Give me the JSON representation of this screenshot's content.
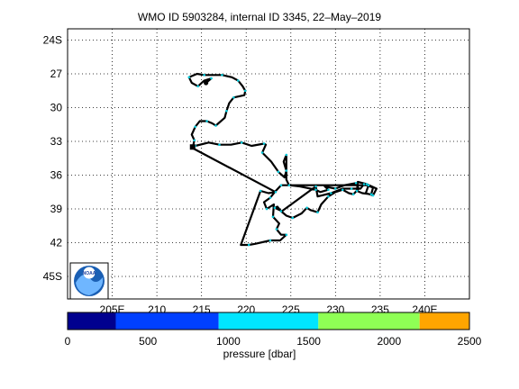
{
  "title": "WMO ID 5903284, internal ID 3345, 22–May–2019",
  "map": {
    "lat_ticks": [
      "24S",
      "27",
      "30",
      "33",
      "36",
      "39",
      "42",
      "45S"
    ],
    "lon_ticks": [
      "205E",
      "210",
      "215",
      "220",
      "225",
      "230",
      "235",
      "240E"
    ],
    "lon_range": [
      200,
      245
    ],
    "lat_range": [
      -47,
      -23
    ],
    "grid": true
  },
  "logo": {
    "text": "NOAA"
  },
  "colorbar": {
    "label": "pressure [dbar]",
    "ticks": [
      "0",
      "500",
      "1000",
      "1500",
      "2000",
      "2500"
    ],
    "range": [
      0,
      2500
    ],
    "bins": [
      {
        "from": 0,
        "to": 300,
        "color": "#00008f"
      },
      {
        "from": 300,
        "to": 940,
        "color": "#0040ff"
      },
      {
        "from": 940,
        "to": 1560,
        "color": "#00e5ff"
      },
      {
        "from": 1560,
        "to": 2190,
        "color": "#8fff55"
      },
      {
        "from": 2190,
        "to": 2500,
        "color": "#ffa500"
      }
    ]
  },
  "track_colors": {
    "line": "#000000",
    "profile_dot": "#00ccdd",
    "end_marker": "#000000"
  },
  "track": [
    [
      214.0,
      -33.5
    ],
    [
      214.3,
      -33.4
    ],
    [
      215.8,
      -33.1
    ],
    [
      217.0,
      -33.3
    ],
    [
      218.3,
      -33.3
    ],
    [
      219.5,
      -33.1
    ],
    [
      220.6,
      -33.4
    ],
    [
      222.0,
      -33.2
    ],
    [
      222.2,
      -33.3
    ],
    [
      221.8,
      -34.0
    ],
    [
      222.8,
      -34.8
    ],
    [
      223.6,
      -35.7
    ],
    [
      224.3,
      -36.2
    ],
    [
      224.5,
      -35.6
    ],
    [
      224.2,
      -34.8
    ],
    [
      224.5,
      -34.2
    ],
    [
      224.5,
      -36.4
    ],
    [
      224.8,
      -36.9
    ],
    [
      226.0,
      -37.0
    ],
    [
      227.8,
      -37.3
    ],
    [
      228.3,
      -37.5
    ],
    [
      229.2,
      -37.3
    ],
    [
      228.8,
      -37.0
    ],
    [
      230.0,
      -37.2
    ],
    [
      231.0,
      -36.9
    ],
    [
      232.3,
      -36.7
    ],
    [
      232.6,
      -37.2
    ],
    [
      232.0,
      -37.7
    ],
    [
      231.5,
      -37.6
    ],
    [
      230.8,
      -37.3
    ],
    [
      230.0,
      -37.5
    ],
    [
      229.2,
      -37.9
    ],
    [
      228.4,
      -38.6
    ],
    [
      228.0,
      -39.3
    ],
    [
      227.2,
      -39.1
    ],
    [
      226.8,
      -38.9
    ],
    [
      226.2,
      -39.4
    ],
    [
      225.2,
      -39.8
    ],
    [
      224.5,
      -39.6
    ],
    [
      223.9,
      -39.2
    ],
    [
      223.5,
      -38.8
    ],
    [
      223.2,
      -38.9
    ],
    [
      224.0,
      -39.2
    ],
    [
      227.8,
      -37.0
    ],
    [
      228.0,
      -37.9
    ],
    [
      229.5,
      -37.6
    ],
    [
      230.8,
      -37.2
    ],
    [
      231.8,
      -37.2
    ],
    [
      232.8,
      -37.2
    ],
    [
      233.2,
      -36.8
    ],
    [
      234.2,
      -37.1
    ],
    [
      234.0,
      -37.7
    ],
    [
      233.0,
      -37.6
    ],
    [
      232.4,
      -37.4
    ],
    [
      232.5,
      -36.6
    ],
    [
      233.5,
      -36.8
    ],
    [
      234.6,
      -37.2
    ],
    [
      234.2,
      -37.8
    ],
    [
      233.4,
      -37.6
    ],
    [
      233.7,
      -36.9
    ],
    [
      224.9,
      -36.9
    ],
    [
      223.9,
      -36.9
    ],
    [
      223.2,
      -37.5
    ],
    [
      222.7,
      -38.0
    ],
    [
      222.0,
      -38.4
    ],
    [
      222.3,
      -39.0
    ],
    [
      223.1,
      -38.6
    ],
    [
      223.0,
      -39.7
    ],
    [
      223.7,
      -40.3
    ],
    [
      223.4,
      -40.8
    ],
    [
      223.9,
      -41.3
    ],
    [
      224.5,
      -41.3
    ],
    [
      223.8,
      -41.8
    ],
    [
      222.7,
      -41.8
    ],
    [
      221.0,
      -42.1
    ],
    [
      220.3,
      -42.2
    ],
    [
      219.4,
      -42.2
    ],
    [
      221.6,
      -37.4
    ],
    [
      222.5,
      -37.6
    ],
    [
      223.3,
      -37.5
    ],
    [
      214.0,
      -33.6
    ],
    [
      214.2,
      -32.9
    ],
    [
      213.9,
      -32.4
    ],
    [
      214.3,
      -31.7
    ],
    [
      214.8,
      -31.2
    ],
    [
      215.6,
      -31.2
    ],
    [
      216.2,
      -31.4
    ],
    [
      216.6,
      -31.6
    ],
    [
      217.6,
      -30.9
    ],
    [
      217.8,
      -30.3
    ],
    [
      218.1,
      -29.6
    ],
    [
      218.6,
      -29.1
    ],
    [
      219.8,
      -28.9
    ],
    [
      219.9,
      -28.5
    ],
    [
      219.6,
      -28.1
    ],
    [
      219.1,
      -27.6
    ],
    [
      218.4,
      -27.3
    ],
    [
      217.3,
      -27.1
    ],
    [
      216.2,
      -27.1
    ],
    [
      215.3,
      -27.1
    ],
    [
      214.5,
      -27.0
    ],
    [
      213.6,
      -27.3
    ],
    [
      213.9,
      -27.8
    ],
    [
      214.6,
      -28.1
    ],
    [
      215.3,
      -27.6
    ],
    [
      216.1,
      -27.4
    ],
    [
      215.5,
      -27.8
    ]
  ]
}
